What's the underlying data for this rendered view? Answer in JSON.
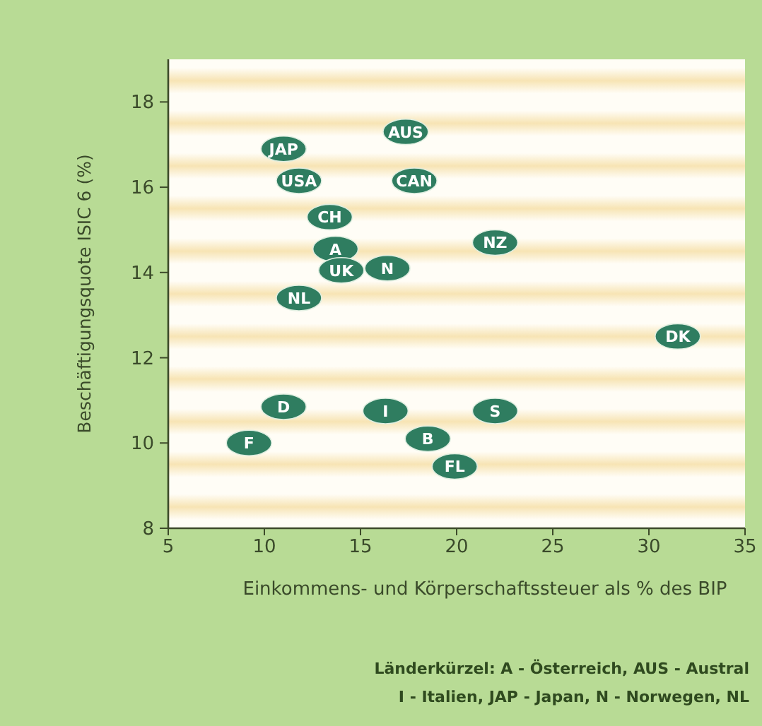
{
  "chart_data": {
    "type": "scatter",
    "xlabel": "Einkommens- und Körperschaftssteuer als % des BIP",
    "ylabel": "Beschäftigungsquote ISIC 6 (%)",
    "xlim": [
      5,
      35
    ],
    "xticks": [
      5,
      10,
      15,
      20,
      25,
      30,
      35
    ],
    "ylim": [
      8,
      19
    ],
    "yticks": [
      8,
      10,
      12,
      14,
      16,
      18
    ],
    "grid": false,
    "marker": "circle",
    "series": [
      {
        "color": "#2f7d60",
        "x": [
          11.0,
          17.35,
          11.8,
          17.8,
          13.4,
          13.7,
          14.0,
          16.4,
          22.0,
          11.8,
          31.5,
          11.0,
          16.3,
          22.0,
          9.2,
          18.5,
          19.9
        ],
        "values": [
          16.9,
          17.3,
          16.15,
          16.15,
          15.3,
          14.55,
          14.05,
          14.1,
          14.7,
          13.4,
          12.5,
          10.85,
          10.75,
          10.75,
          10.0,
          10.1,
          9.45
        ]
      }
    ],
    "annotations": [
      {
        "text": "JAP",
        "x": 11.0,
        "y": 16.9
      },
      {
        "text": "AUS",
        "x": 17.35,
        "y": 17.3
      },
      {
        "text": "USA",
        "x": 11.8,
        "y": 16.15
      },
      {
        "text": "CAN",
        "x": 17.8,
        "y": 16.15
      },
      {
        "text": "CH",
        "x": 13.4,
        "y": 15.3
      },
      {
        "text": "A",
        "x": 13.7,
        "y": 14.55
      },
      {
        "text": "UK",
        "x": 14.0,
        "y": 14.05
      },
      {
        "text": "N",
        "x": 16.4,
        "y": 14.1
      },
      {
        "text": "NZ",
        "x": 22.0,
        "y": 14.7
      },
      {
        "text": "NL",
        "x": 11.8,
        "y": 13.4
      },
      {
        "text": "DK",
        "x": 31.5,
        "y": 12.5
      },
      {
        "text": "D",
        "x": 11.0,
        "y": 10.85
      },
      {
        "text": "I",
        "x": 16.3,
        "y": 10.75
      },
      {
        "text": "S",
        "x": 22.0,
        "y": 10.75
      },
      {
        "text": "F",
        "x": 9.2,
        "y": 10.0
      },
      {
        "text": "B",
        "x": 18.5,
        "y": 10.1
      },
      {
        "text": "FL",
        "x": 19.9,
        "y": 9.45
      },
      "Länderkürzel: A - Österreich, AUS - Austral",
      "I - Italien, JAP - Japan, N - Norwegen, NL"
    ]
  }
}
